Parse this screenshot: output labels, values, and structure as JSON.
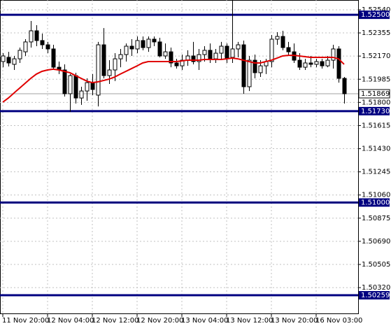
{
  "chart_data": {
    "type": "candlestick",
    "categories": [
      "11 Nov 20:00",
      null,
      null,
      null,
      null,
      null,
      null,
      null,
      "12 Nov 04:00",
      null,
      null,
      null,
      null,
      null,
      null,
      null,
      "12 Nov 12:00",
      null,
      null,
      null,
      null,
      null,
      null,
      null,
      "12 Nov 20:00",
      null,
      null,
      null,
      null,
      null,
      null,
      null,
      "13 Nov 04:00",
      null,
      null,
      null,
      null,
      null,
      null,
      null,
      "13 Nov 12:00",
      null,
      null,
      null,
      null,
      null,
      null,
      null,
      "13 Nov 20:00",
      null,
      null,
      null,
      null,
      null,
      null,
      null,
      "16 Nov 03:00",
      null,
      null,
      null,
      null,
      null
    ],
    "open": [
      1.52126,
      1.5216,
      1.52104,
      1.52148,
      1.52204,
      1.52283,
      1.52372,
      1.52294,
      1.5226,
      1.52227,
      1.52081,
      1.52059,
      1.51869,
      1.52014,
      1.51835,
      1.51891,
      1.51958,
      1.51858,
      1.5226,
      1.52014,
      1.52059,
      1.52148,
      1.52182,
      1.52249,
      1.52227,
      1.52294,
      1.52238,
      1.52305,
      1.52283,
      1.52171,
      1.52204,
      1.52115,
      1.52092,
      1.52137,
      1.52171,
      1.52126,
      1.52182,
      1.52216,
      1.52148,
      1.52193,
      1.52249,
      1.5216,
      1.52227,
      1.5226,
      1.51925,
      1.52137,
      1.52037,
      1.52092,
      1.52126,
      1.52305,
      1.52327,
      1.52238,
      1.52204,
      1.52137,
      1.52081,
      1.52115,
      1.52104,
      1.52126,
      1.52092,
      1.52137,
      1.52227,
      1.51992
    ],
    "high": [
      1.52193,
      1.52204,
      1.52171,
      1.52238,
      1.52305,
      1.5245,
      1.52417,
      1.5235,
      1.52283,
      1.5226,
      1.52126,
      1.52104,
      1.52026,
      1.52037,
      1.51925,
      1.51992,
      1.52026,
      1.52283,
      1.52394,
      1.52137,
      1.52193,
      1.52227,
      1.52271,
      1.52305,
      1.52327,
      1.52327,
      1.52327,
      1.52327,
      1.52316,
      1.52271,
      1.52238,
      1.52148,
      1.52182,
      1.52216,
      1.52283,
      1.52227,
      1.52249,
      1.52271,
      1.52227,
      1.52283,
      1.52271,
      1.52618,
      1.52283,
      1.52294,
      1.52171,
      1.52182,
      1.52137,
      1.52148,
      1.52338,
      1.52361,
      1.52372,
      1.52283,
      1.52271,
      1.52193,
      1.52148,
      1.52171,
      1.52148,
      1.52148,
      1.52171,
      1.5226,
      1.52249,
      1.52003
    ],
    "low": [
      1.52081,
      1.52087,
      1.52059,
      1.52115,
      1.52171,
      1.52238,
      1.52249,
      1.52227,
      1.52193,
      1.5207,
      1.52026,
      1.51847,
      1.51724,
      1.51791,
      1.5178,
      1.51813,
      1.51858,
      1.51768,
      1.51992,
      1.51947,
      1.5197,
      1.52081,
      1.52126,
      1.52171,
      1.52193,
      1.52216,
      1.52204,
      1.52249,
      1.5216,
      1.52148,
      1.52081,
      1.5207,
      1.52059,
      1.52092,
      1.52104,
      1.52059,
      1.52126,
      1.52115,
      1.52115,
      1.52137,
      1.52115,
      1.52115,
      1.5216,
      1.51869,
      1.51891,
      1.51992,
      1.52003,
      1.52026,
      1.52081,
      1.5226,
      1.52216,
      1.52171,
      1.52115,
      1.52059,
      1.52059,
      1.52081,
      1.52081,
      1.5207,
      1.52081,
      1.5207,
      1.51958,
      1.51791
    ],
    "close": [
      1.52171,
      1.52115,
      1.52148,
      1.52216,
      1.52283,
      1.52372,
      1.52294,
      1.5226,
      1.52227,
      1.52081,
      1.52059,
      1.51869,
      1.52014,
      1.51835,
      1.51891,
      1.51958,
      1.51903,
      1.5226,
      1.52014,
      1.52059,
      1.52148,
      1.52182,
      1.52249,
      1.52227,
      1.52294,
      1.52238,
      1.52305,
      1.52283,
      1.52171,
      1.52204,
      1.52115,
      1.52092,
      1.52137,
      1.52171,
      1.52126,
      1.52182,
      1.52216,
      1.52148,
      1.52193,
      1.52249,
      1.52148,
      1.52227,
      1.5226,
      1.51925,
      1.52137,
      1.52037,
      1.52092,
      1.52126,
      1.52305,
      1.52327,
      1.52238,
      1.52204,
      1.52137,
      1.52081,
      1.52115,
      1.52104,
      1.52126,
      1.52092,
      1.52137,
      1.52227,
      1.51992,
      1.51869
    ],
    "up_color": "#ffffff",
    "down_color": "#000000",
    "moving_average": {
      "color": "#e00000",
      "values": [
        1.51802,
        1.51835,
        1.51875,
        1.51914,
        1.51953,
        1.51992,
        1.52026,
        1.52048,
        1.52059,
        1.52065,
        1.52059,
        1.52048,
        1.52037,
        1.52014,
        1.51992,
        1.5197,
        1.51958,
        1.51964,
        1.51975,
        1.51986,
        1.52003,
        1.52026,
        1.52048,
        1.5207,
        1.52092,
        1.52115,
        1.52126,
        1.52126,
        1.52126,
        1.52126,
        1.52126,
        1.52126,
        1.52132,
        1.52137,
        1.52137,
        1.52137,
        1.52143,
        1.52143,
        1.52143,
        1.52143,
        1.52148,
        1.52154,
        1.52148,
        1.52137,
        1.52126,
        1.52115,
        1.52115,
        1.52126,
        1.52137,
        1.52154,
        1.52171,
        1.52176,
        1.52176,
        1.52171,
        1.52165,
        1.5216,
        1.5216,
        1.5216,
        1.5216,
        1.5216,
        1.52148,
        1.52104
      ]
    },
    "levels": {
      "color": "#000080",
      "values": [
        {
          "value": 1.525,
          "label": "1.52500"
        },
        {
          "value": 1.5173,
          "label": "1.51730"
        },
        {
          "value": 1.51,
          "label": "1.51000"
        },
        {
          "value": 1.50259,
          "label": "1.50259"
        }
      ]
    },
    "last_price": 1.51869,
    "ylim": [
      1.50114,
      1.52618
    ],
    "yticks": [
      {
        "value": 1.5254,
        "label": "1.52540"
      },
      1.52355,
      {
        "value": 1.5217,
        "label": "1.52170"
      },
      1.51985,
      {
        "value": 1.518,
        "label": "1.51800"
      },
      1.51615,
      {
        "value": 1.5143,
        "label": "1.51430"
      },
      1.51245,
      {
        "value": 1.5106,
        "label": "1.51060"
      },
      1.50875,
      {
        "value": 1.5069,
        "label": "1.50690"
      },
      1.50505,
      {
        "value": 1.5032,
        "label": "1.50320"
      }
    ],
    "grid": true
  }
}
